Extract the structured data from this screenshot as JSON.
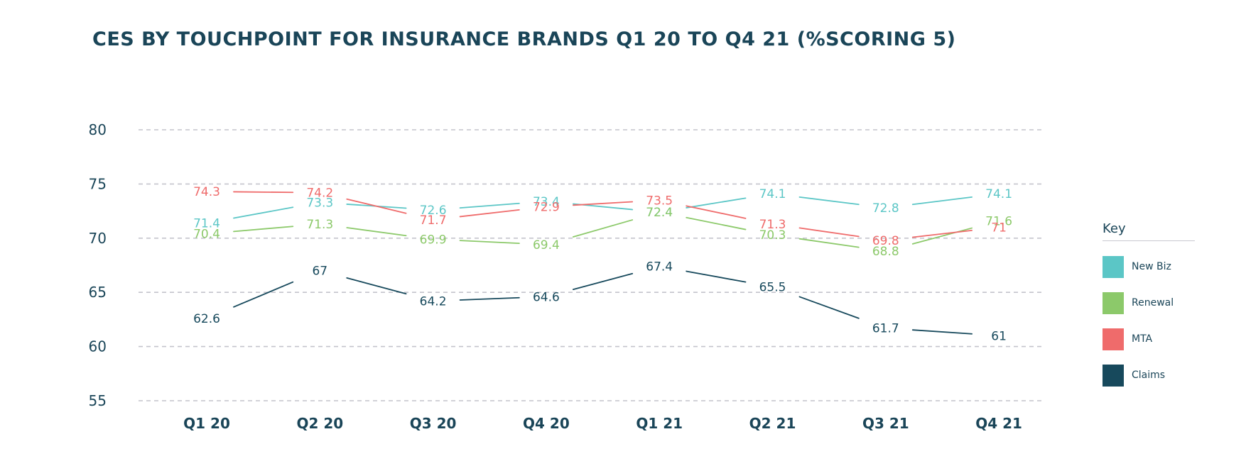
{
  "chart_data": {
    "type": "line",
    "title": "CES BY TOUCHPOINT FOR INSURANCE BRANDS Q1 20 TO Q4 21 (%SCORING 5)",
    "xlabel": "",
    "ylabel": "",
    "categories": [
      "Q1 20",
      "Q2 20",
      "Q3 20",
      "Q4 20",
      "Q1 21",
      "Q2 21",
      "Q3 21",
      "Q4 21"
    ],
    "yticks": [
      55,
      60,
      65,
      70,
      75,
      80
    ],
    "ylim": [
      55,
      80
    ],
    "grid": true,
    "legend_title": "Key",
    "legend_position": "right",
    "series": [
      {
        "name": "New Biz",
        "color": "#5bc6c6",
        "values": [
          71.4,
          73.3,
          72.6,
          73.4,
          72.4,
          74.1,
          72.8,
          74.1
        ]
      },
      {
        "name": "Renewal",
        "color": "#8cc96a",
        "values": [
          70.4,
          71.3,
          69.9,
          69.4,
          72.4,
          70.3,
          68.8,
          71.6
        ]
      },
      {
        "name": "MTA",
        "color": "#ef6b6b",
        "values": [
          74.3,
          74.2,
          71.7,
          72.9,
          73.5,
          71.3,
          69.8,
          71
        ]
      },
      {
        "name": "Claims",
        "color": "#17495c",
        "values": [
          62.6,
          67,
          64.2,
          64.6,
          67.4,
          65.5,
          61.7,
          61
        ]
      }
    ]
  }
}
